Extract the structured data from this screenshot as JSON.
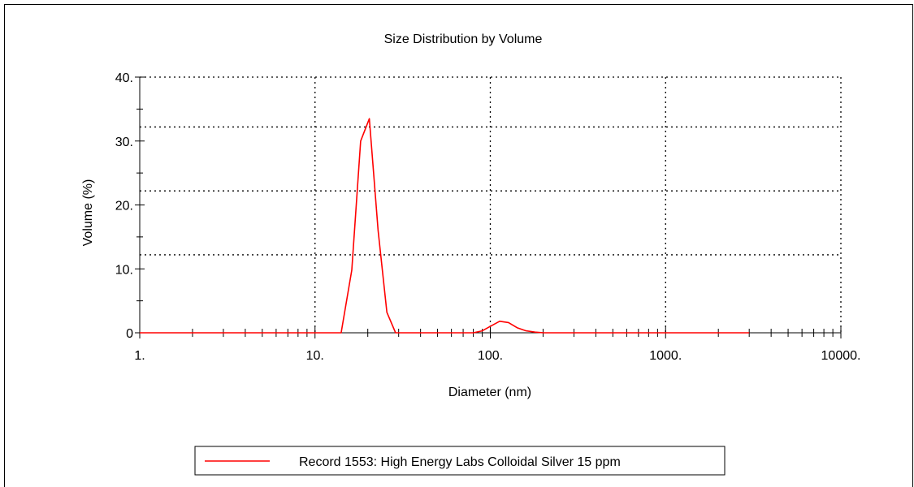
{
  "chart_data": {
    "type": "line",
    "title": "Size Distribution by Volume",
    "xlabel": "Diameter (nm)",
    "ylabel": "Volume (%)",
    "x_scale": "log",
    "xlim": [
      1,
      10000
    ],
    "ylim": [
      0,
      40
    ],
    "x_ticks": [
      {
        "value": 1,
        "label": "1."
      },
      {
        "value": 10,
        "label": "10."
      },
      {
        "value": 100,
        "label": "100."
      },
      {
        "value": 1000,
        "label": "1000."
      },
      {
        "value": 10000,
        "label": "10000."
      }
    ],
    "y_ticks": [
      {
        "value": 0,
        "label": "0"
      },
      {
        "value": 10,
        "label": "10."
      },
      {
        "value": 20,
        "label": "20."
      },
      {
        "value": 30,
        "label": "30."
      },
      {
        "value": 40,
        "label": "40."
      }
    ],
    "grid_x": [
      10,
      100,
      1000,
      10000
    ],
    "grid_y": [
      12.2,
      22.2,
      32.2,
      40
    ],
    "grid": true,
    "legend_position": "bottom-center",
    "series": [
      {
        "name": "Record 1553: High Energy Labs Colloidal Silver 15 ppm",
        "color": "#ff0000",
        "x": [
          1,
          14.1,
          16.2,
          18.2,
          20.4,
          22.9,
          25.7,
          28.8,
          80,
          90,
          100,
          113,
          127,
          142,
          160,
          180,
          202,
          300,
          3000
        ],
        "y": [
          0,
          0,
          9.8,
          30,
          33.5,
          16,
          3.2,
          0,
          0,
          0.3,
          1.0,
          1.8,
          1.6,
          0.8,
          0.3,
          0.1,
          0,
          0,
          0
        ]
      }
    ]
  }
}
